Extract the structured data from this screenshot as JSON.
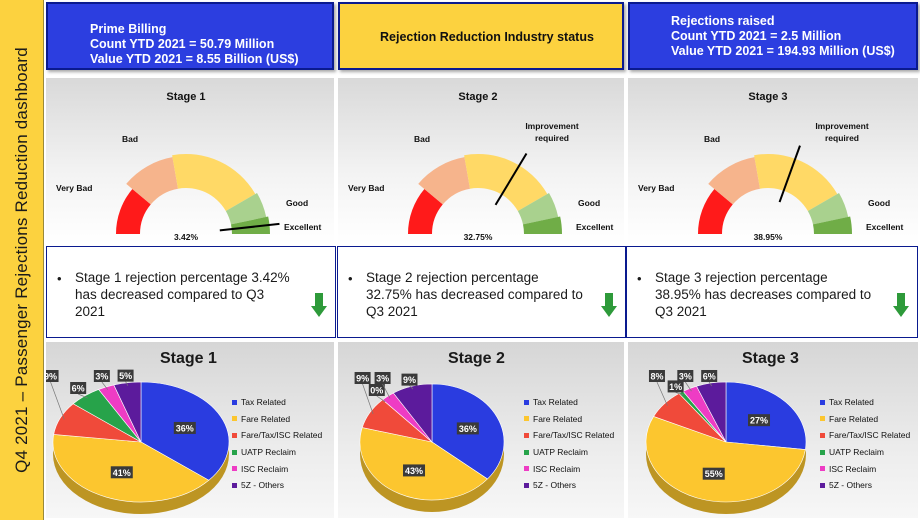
{
  "sidebar": {
    "title": "Q4 2021 – Passenger Rejections Reduction dashboard"
  },
  "headers": [
    {
      "lines": [
        "Prime Billing",
        "Count YTD 2021 = 50.79 Million",
        "Value YTD 2021 = 8.55 Billion (US$)"
      ]
    },
    {
      "lines": [
        "Rejection Reduction Industry status"
      ]
    },
    {
      "lines": [
        "Rejections raised",
        "Count YTD 2021 = 2.5 Million",
        "Value YTD 2021 = 194.93 Million (US$)"
      ]
    }
  ],
  "gauge_zone_labels": {
    "very_bad": "Very Bad",
    "bad": "Bad",
    "good": "Good",
    "excellent": "Excellent",
    "improvement_line1": "Improvement",
    "improvement_line2": "required"
  },
  "colors": {
    "very_bad": "#ff1a1a",
    "bad": "#f6b48c",
    "improvement": "#ffd966",
    "good": "#a9d18e",
    "excellent": "#70ad47",
    "arrow": "#2e9a3a"
  },
  "statements": [
    {
      "text": "Stage 1 rejection percentage 3.42% has decreased compared to Q3 2021",
      "trend": "down-arrow-icon"
    },
    {
      "text": "Stage 2 rejection percentage 32.75% has decreased compared to Q3 2021",
      "trend": "down-arrow-icon"
    },
    {
      "text": "Stage 3 rejection percentage 38.95% has decreases compared to Q3 2021",
      "trend": "down-arrow-icon"
    }
  ],
  "chart_data": [
    {
      "type": "gauge",
      "title": "Stage 1",
      "value": 3.42,
      "value_label": "3.42%",
      "show_improvement_label": false
    },
    {
      "type": "gauge",
      "title": "Stage 2",
      "value": 32.75,
      "value_label": "32.75%",
      "show_improvement_label": true
    },
    {
      "type": "gauge",
      "title": "Stage 3",
      "value": 38.95,
      "value_label": "38.95%",
      "show_improvement_label": true
    },
    {
      "type": "pie",
      "title": "Stage 1",
      "categories": [
        "Tax Related",
        "Fare Related",
        "Fare/Tax/ISC Related",
        "UATP Reclaim",
        "ISC Reclaim",
        "5Z - Others"
      ],
      "values": [
        36,
        41,
        9,
        6,
        3,
        5
      ],
      "labels": [
        "36%",
        "41%",
        "9%",
        "6%",
        "3%",
        "5%"
      ],
      "colors": [
        "#2a3ce0",
        "#fcc62f",
        "#f04a3a",
        "#27a34a",
        "#ee3cc4",
        "#5c1b9c"
      ]
    },
    {
      "type": "pie",
      "title": "Stage 2",
      "categories": [
        "Tax Related",
        "Fare Related",
        "Fare/Tax/ISC Related",
        "UATP Reclaim",
        "ISC Reclaim",
        "5Z - Others"
      ],
      "values": [
        36,
        43,
        9,
        0,
        3,
        9
      ],
      "labels": [
        "36%",
        "43%",
        "9%",
        "0%",
        "3%",
        "9%"
      ],
      "colors": [
        "#2a3ce0",
        "#fcc62f",
        "#f04a3a",
        "#27a34a",
        "#ee3cc4",
        "#5c1b9c"
      ]
    },
    {
      "type": "pie",
      "title": "Stage 3",
      "categories": [
        "Tax Related",
        "Fare Related",
        "Fare/Tax/ISC Related",
        "UATP Reclaim",
        "ISC Reclaim",
        "5Z - Others"
      ],
      "values": [
        27,
        55,
        8,
        1,
        3,
        6
      ],
      "labels": [
        "27%",
        "55%",
        "8%",
        "1%",
        "3%",
        "6%"
      ],
      "colors": [
        "#2a3ce0",
        "#fcc62f",
        "#f04a3a",
        "#27a34a",
        "#ee3cc4",
        "#5c1b9c"
      ]
    }
  ]
}
